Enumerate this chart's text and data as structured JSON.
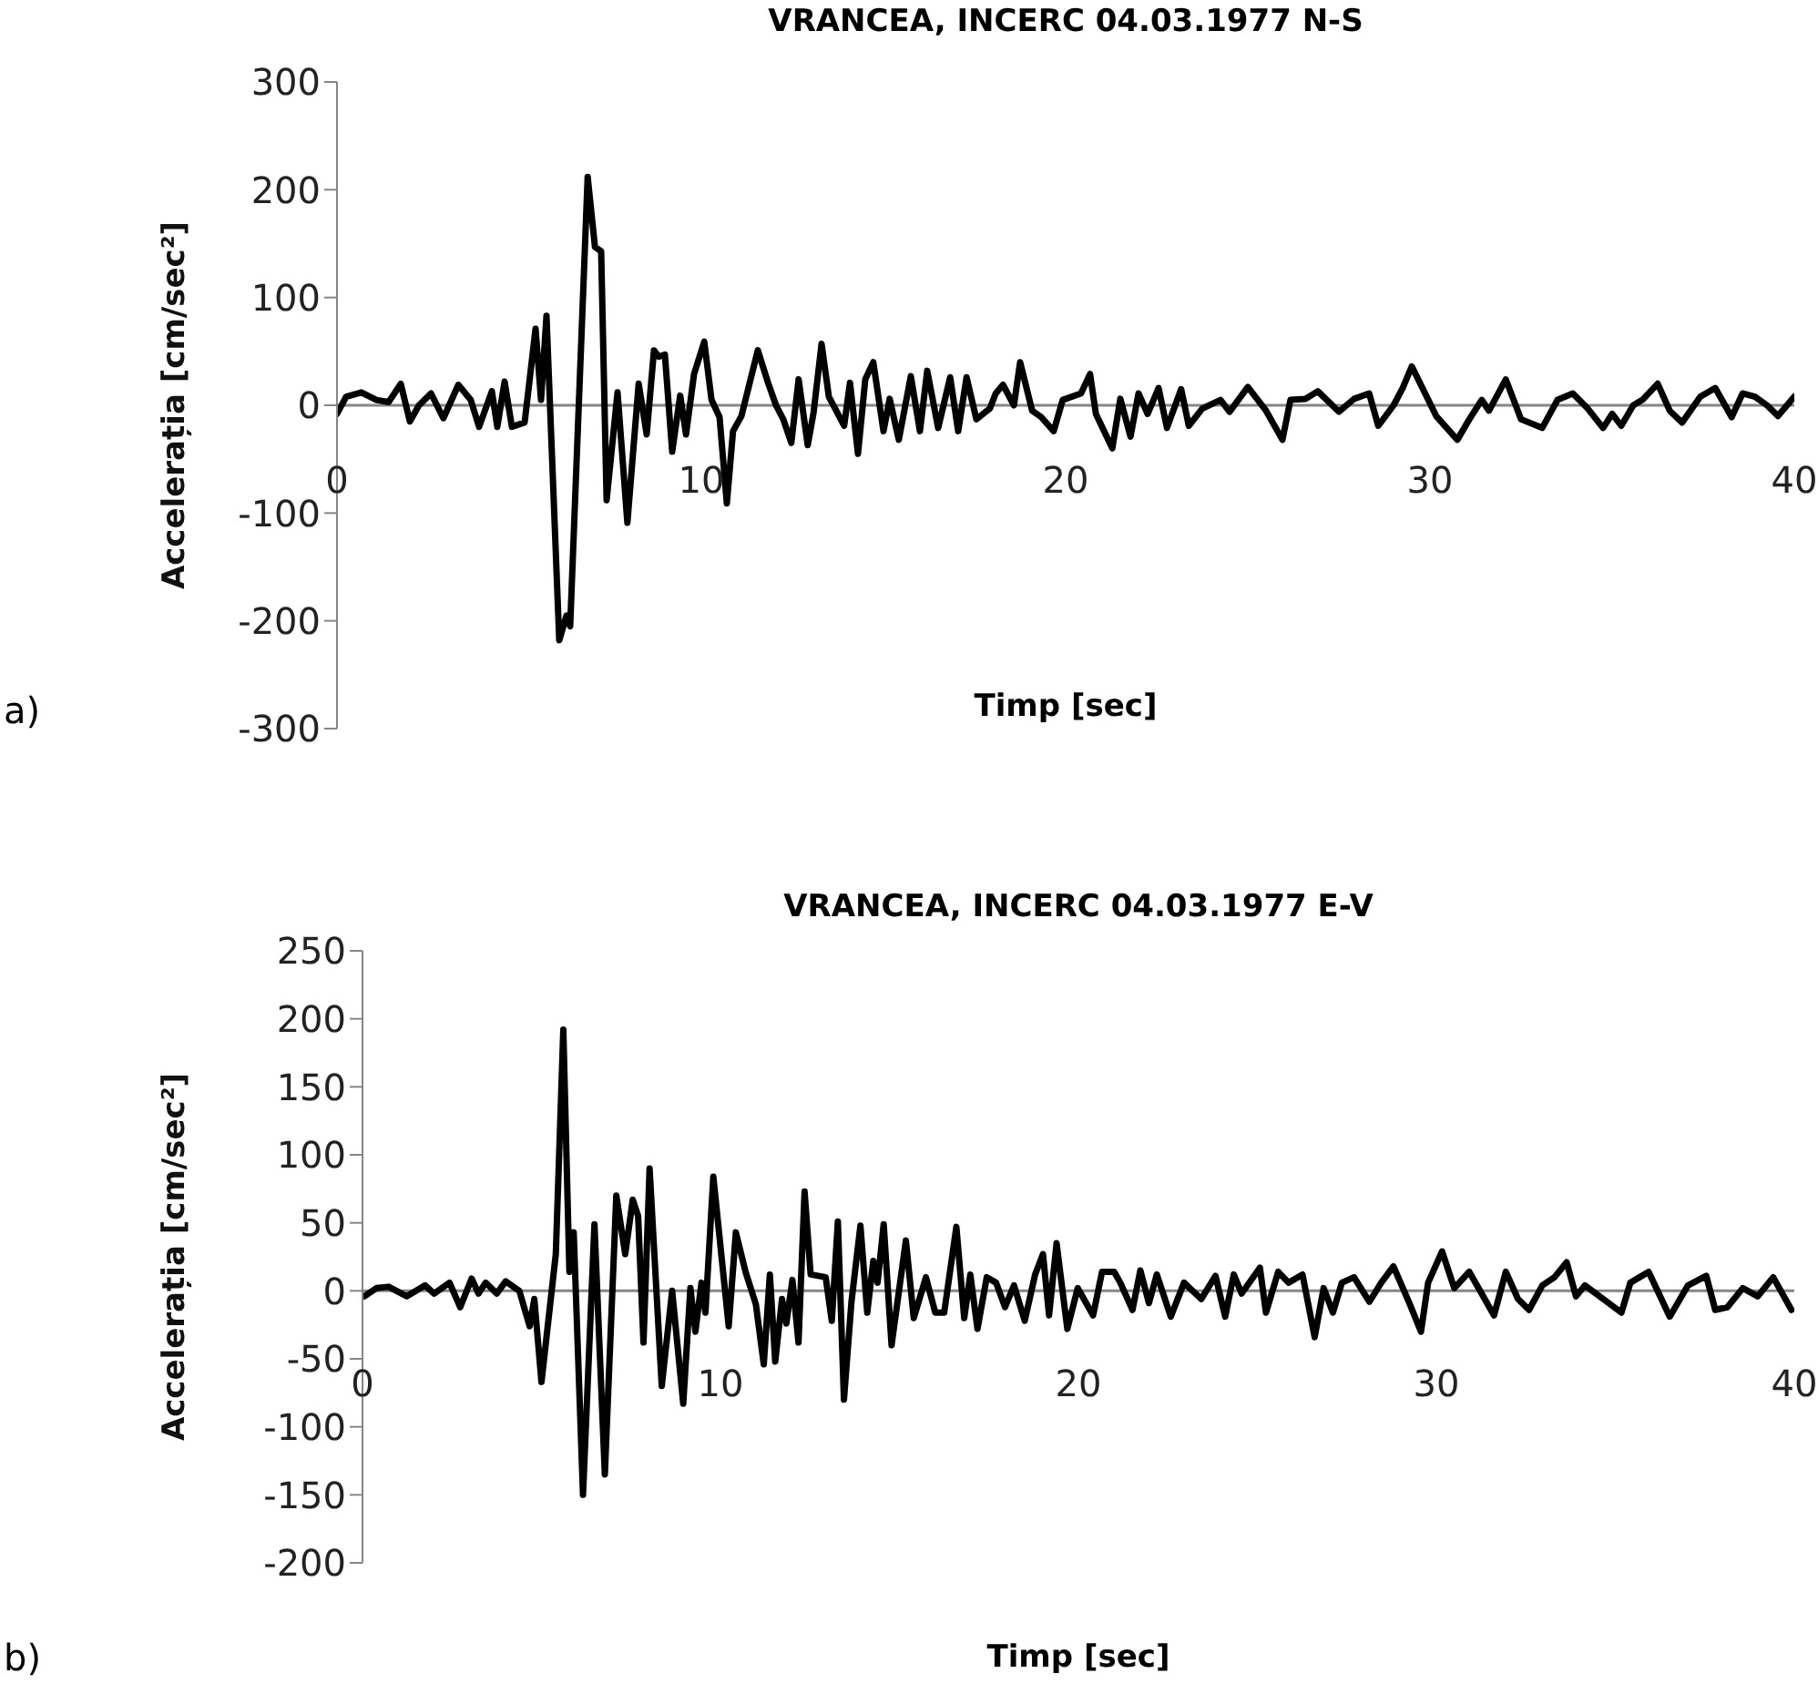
{
  "chart_data": [
    {
      "type": "line",
      "title": "VRANCEA, INCERC  04.03.1977 N-S",
      "xlabel": "Timp [sec]",
      "ylabel": "Accelerația [cm/sec²]",
      "annotations": [
        "a)"
      ],
      "color": "#000000",
      "xlim": [
        0,
        40
      ],
      "xticks": [
        0,
        10,
        20,
        30,
        40
      ],
      "ylim": [
        -300,
        300
      ],
      "yticks": [
        -300,
        -200,
        -100,
        0,
        100,
        200,
        300
      ],
      "x": [
        0,
        0.25,
        0.67,
        1.08,
        1.42,
        1.75,
        2.0,
        2.25,
        2.58,
        2.92,
        3.33,
        3.67,
        3.9,
        4.25,
        4.4,
        4.6,
        4.8,
        5.15,
        5.45,
        5.6,
        5.75,
        6.1,
        6.3,
        6.4,
        6.88,
        7.08,
        7.25,
        7.4,
        7.7,
        7.97,
        8.28,
        8.5,
        8.7,
        8.83,
        9.0,
        9.2,
        9.42,
        9.58,
        9.8,
        10.08,
        10.28,
        10.5,
        10.7,
        10.87,
        11.1,
        11.55,
        11.83,
        12.05,
        12.25,
        12.47,
        12.67,
        12.92,
        13.08,
        13.3,
        13.5,
        13.92,
        14.08,
        14.3,
        14.5,
        14.72,
        15.0,
        15.17,
        15.42,
        15.75,
        16.0,
        16.2,
        16.5,
        16.83,
        17.05,
        17.28,
        17.55,
        17.92,
        18.08,
        18.28,
        18.58,
        18.75,
        19.08,
        19.33,
        19.67,
        19.92,
        20.42,
        20.67,
        20.83,
        21.28,
        21.5,
        21.78,
        22.0,
        22.25,
        22.55,
        22.78,
        23.17,
        23.38,
        23.75,
        24.25,
        24.5,
        25.0,
        25.5,
        25.95,
        26.17,
        26.58,
        26.92,
        27.5,
        27.92,
        28.33,
        28.58,
        29.0,
        29.25,
        29.5,
        29.75,
        30.17,
        30.75,
        31.08,
        31.42,
        31.62,
        32.08,
        32.5,
        33.08,
        33.5,
        33.92,
        34.33,
        34.75,
        35.0,
        35.25,
        35.58,
        35.83,
        36.25,
        36.58,
        36.92,
        37.42,
        37.83,
        38.28,
        38.58,
        38.92,
        39.25,
        39.55,
        40.0
      ],
      "values": [
        -8,
        8,
        12,
        5,
        3,
        20,
        -15,
        0,
        11,
        -12,
        19,
        5,
        -20,
        13,
        -20,
        22,
        -20,
        -16,
        71,
        5,
        83,
        -218,
        -195,
        -205,
        212,
        147,
        143,
        -88,
        12,
        -109,
        20,
        -27,
        51,
        45,
        47,
        -43,
        9,
        -27,
        29,
        59,
        5,
        -11,
        -91,
        -24,
        -10,
        51,
        21,
        0,
        -13,
        -35,
        24,
        -37,
        -7,
        57,
        8,
        -19,
        21,
        -45,
        24,
        40,
        -24,
        6,
        -32,
        27,
        -24,
        32,
        -21,
        26,
        -24,
        26,
        -13,
        -3,
        11,
        19,
        0,
        40,
        -5,
        -11,
        -24,
        5,
        11,
        29,
        -8,
        -40,
        6,
        -29,
        11,
        -8,
        16,
        -21,
        15,
        -19,
        -3,
        5,
        -6,
        17,
        -5,
        -32,
        5,
        6,
        13,
        -6,
        6,
        11,
        -19,
        0,
        16,
        36,
        19,
        -10,
        -32,
        -13,
        5,
        -5,
        24,
        -13,
        -21,
        5,
        11,
        -3,
        -21,
        -8,
        -19,
        0,
        5,
        20,
        -5,
        -16,
        8,
        16,
        -11,
        11,
        8,
        0,
        -10,
        8
      ]
    },
    {
      "type": "line",
      "title": "VRANCEA, INCERC  04.03.1977 E-V",
      "xlabel": "Timp [sec]",
      "ylabel": "Accelerația [cm/sec²]",
      "annotations": [
        "b)"
      ],
      "color": "#000000",
      "xlim": [
        0,
        40
      ],
      "xticks": [
        0,
        10,
        20,
        30,
        40
      ],
      "ylim": [
        -200,
        250
      ],
      "yticks": [
        -200,
        -150,
        -100,
        -50,
        0,
        50,
        100,
        150,
        200,
        250
      ],
      "x": [
        0.05,
        0.39,
        0.73,
        1.24,
        1.75,
        2.0,
        2.43,
        2.73,
        3.05,
        3.24,
        3.44,
        3.75,
        4.0,
        4.38,
        4.67,
        4.8,
        5.0,
        5.4,
        5.61,
        5.78,
        5.9,
        6.16,
        6.48,
        6.77,
        7.09,
        7.34,
        7.55,
        7.7,
        7.85,
        8.02,
        8.36,
        8.65,
        8.96,
        9.16,
        9.3,
        9.47,
        9.58,
        9.8,
        10.23,
        10.43,
        10.7,
        10.99,
        11.21,
        11.38,
        11.53,
        11.72,
        11.84,
        12.01,
        12.18,
        12.35,
        12.52,
        12.94,
        13.11,
        13.28,
        13.45,
        13.66,
        13.91,
        14.1,
        14.27,
        14.39,
        14.56,
        14.78,
        15.18,
        15.4,
        15.74,
        16.0,
        16.25,
        16.59,
        16.81,
        16.98,
        17.18,
        17.44,
        17.7,
        17.95,
        18.2,
        18.5,
        18.79,
        19.01,
        19.18,
        19.39,
        19.69,
        19.98,
        20.41,
        20.66,
        21.0,
        21.17,
        21.51,
        21.73,
        21.97,
        22.19,
        22.58,
        22.95,
        23.43,
        23.83,
        24.1,
        24.34,
        24.56,
        25.07,
        25.24,
        25.58,
        25.87,
        26.26,
        26.6,
        26.85,
        27.11,
        27.36,
        27.7,
        28.13,
        28.46,
        28.8,
        29.23,
        29.57,
        29.77,
        30.16,
        30.5,
        30.92,
        31.61,
        31.94,
        32.28,
        32.59,
        32.96,
        33.3,
        33.64,
        33.9,
        34.15,
        34.66,
        35.17,
        35.42,
        35.93,
        36.52,
        37.03,
        37.54,
        37.79,
        38.13,
        38.56,
        38.98,
        39.41,
        39.92
      ],
      "values": [
        -4,
        2,
        3,
        -4,
        4,
        -2,
        6,
        -12,
        9,
        -2,
        6,
        -2,
        7,
        0,
        -26,
        -6,
        -67,
        27,
        192,
        14,
        43,
        -150,
        49,
        -135,
        70,
        27,
        67,
        55,
        -38,
        90,
        -70,
        0,
        -83,
        2,
        -30,
        6,
        -16,
        84,
        -26,
        43,
        14,
        -10,
        -54,
        12,
        -52,
        -6,
        -24,
        8,
        -38,
        73,
        12,
        10,
        -22,
        51,
        -80,
        -8,
        48,
        -16,
        22,
        6,
        49,
        -40,
        37,
        -20,
        10,
        -16,
        -16,
        47,
        -20,
        12,
        -28,
        10,
        6,
        -12,
        4,
        -22,
        12,
        27,
        -18,
        35,
        -28,
        2,
        -18,
        14,
        14,
        6,
        -14,
        15,
        -9,
        12,
        -19,
        6,
        -6,
        11,
        -19,
        12,
        -2,
        17,
        -16,
        14,
        6,
        12,
        -34,
        2,
        -16,
        6,
        10,
        -8,
        6,
        18,
        -8,
        -30,
        6,
        29,
        2,
        14,
        -18,
        14,
        -6,
        -14,
        4,
        10,
        21,
        -4,
        4,
        -6,
        -16,
        6,
        14,
        -19,
        4,
        11,
        -14,
        -12,
        2,
        -4,
        10,
        -14
      ]
    }
  ]
}
